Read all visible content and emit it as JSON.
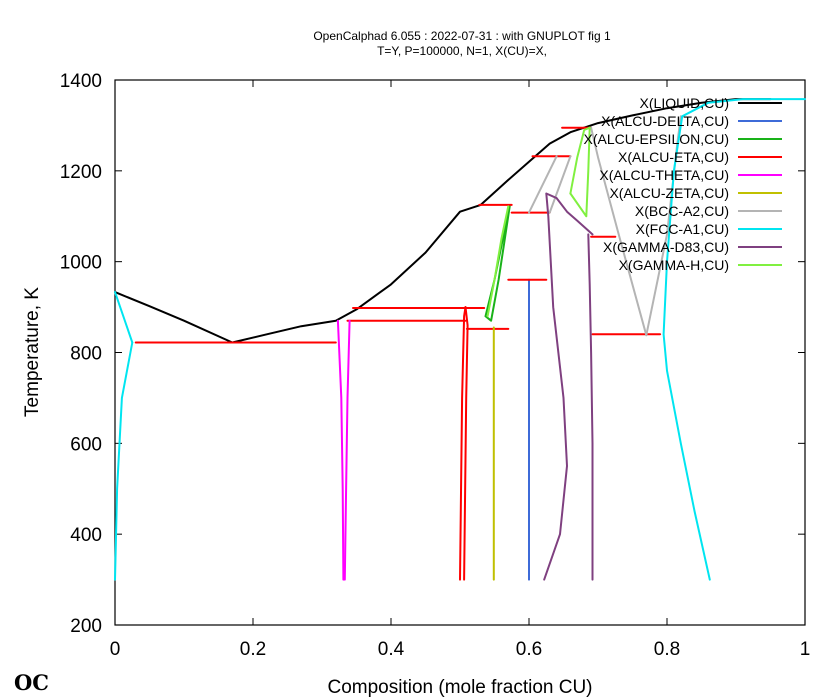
{
  "chart_data": {
    "type": "line",
    "title": "OpenCalphad    6.055 :   2022-07-31 : with GNUPLOT fig 1",
    "subtitle": "T=Y,  P=100000, N=1, X(CU)=X,",
    "xlabel": "Composition (mole fraction CU)",
    "ylabel": "Temperature, K",
    "xlim": [
      0,
      1
    ],
    "ylim": [
      200,
      1400
    ],
    "x_ticks": [
      0,
      0.2,
      0.4,
      0.6,
      0.8,
      1
    ],
    "x_tick_labels": [
      "0",
      "0.2",
      "0.4",
      "0.6",
      "0.8",
      "1"
    ],
    "y_ticks": [
      200,
      400,
      600,
      800,
      1000,
      1200,
      1400
    ],
    "y_tick_labels": [
      "200",
      "400",
      "600",
      "800",
      "1000",
      "1200",
      "1400"
    ],
    "legend_position": "top-right",
    "series": [
      {
        "name": "X(LIQUID,CU)",
        "color": "#000000",
        "segments": [
          [
            [
              0,
              933
            ],
            [
              0.05,
              902
            ],
            [
              0.1,
              870
            ],
            [
              0.17,
              822
            ],
            [
              0.22,
              840
            ],
            [
              0.27,
              858
            ],
            [
              0.32,
              870
            ],
            [
              0.35,
              895
            ],
            [
              0.4,
              950
            ],
            [
              0.45,
              1020
            ],
            [
              0.5,
              1110
            ],
            [
              0.53,
              1125
            ],
            [
              0.57,
              1180
            ],
            [
              0.6,
              1220
            ],
            [
              0.63,
              1260
            ],
            [
              0.66,
              1285
            ],
            [
              0.7,
              1305
            ],
            [
              0.75,
              1322
            ],
            [
              0.8,
              1338
            ],
            [
              0.85,
              1350
            ],
            [
              0.9,
              1358
            ],
            [
              0.95,
              1358
            ]
          ]
        ]
      },
      {
        "name": "X(ALCU-DELTA,CU)",
        "color": "#3e6bd8",
        "segments": [
          [
            [
              0.6,
              960
            ],
            [
              0.6,
              300
            ]
          ]
        ]
      },
      {
        "name": "X(ALCU-EPSILON,CU)",
        "color": "#19b219",
        "segments": [
          [
            [
              0.537,
              880
            ],
            [
              0.55,
              960
            ],
            [
              0.562,
              1050
            ],
            [
              0.572,
              1122
            ],
            [
              0.565,
              1050
            ],
            [
              0.556,
              960
            ],
            [
              0.545,
              870
            ],
            [
              0.537,
              880
            ]
          ]
        ]
      },
      {
        "name": "X(ALCU-ETA,CU)",
        "color": "#ff0000",
        "segments": [
          [
            [
              0.03,
              822
            ],
            [
              0.32,
              822
            ]
          ],
          [
            [
              0.337,
              870
            ],
            [
              0.508,
              870
            ]
          ],
          [
            [
              0.345,
              898
            ],
            [
              0.535,
              898
            ]
          ],
          [
            [
              0.51,
              852
            ],
            [
              0.57,
              852
            ]
          ],
          [
            [
              0.5,
              300
            ],
            [
              0.503,
              700
            ],
            [
              0.506,
              880
            ],
            [
              0.508,
              900
            ]
          ],
          [
            [
              0.506,
              300
            ],
            [
              0.509,
              700
            ],
            [
              0.511,
              860
            ],
            [
              0.508,
              900
            ]
          ],
          [
            [
              0.575,
              1108
            ],
            [
              0.63,
              1108
            ]
          ],
          [
            [
              0.528,
              1125
            ],
            [
              0.575,
              1125
            ]
          ],
          [
            [
              0.57,
              960
            ],
            [
              0.625,
              960
            ]
          ],
          [
            [
              0.605,
              1232
            ],
            [
              0.66,
              1232
            ]
          ],
          [
            [
              0.648,
              1295
            ],
            [
              0.69,
              1295
            ]
          ],
          [
            [
              0.69,
              1055
            ],
            [
              0.725,
              1055
            ]
          ],
          [
            [
              0.692,
              840
            ],
            [
              0.79,
              840
            ]
          ]
        ]
      },
      {
        "name": "X(ALCU-THETA,CU)",
        "color": "#ff00ff",
        "segments": [
          [
            [
              0.323,
              870
            ],
            [
              0.328,
              700
            ],
            [
              0.33,
              500
            ],
            [
              0.331,
              300
            ]
          ],
          [
            [
              0.333,
              300
            ],
            [
              0.335,
              500
            ],
            [
              0.337,
              700
            ],
            [
              0.34,
              870
            ]
          ]
        ]
      },
      {
        "name": "X(ALCU-ZETA,CU)",
        "color": "#c0c000",
        "segments": [
          [
            [
              0.549,
              855
            ],
            [
              0.549,
              300
            ]
          ]
        ]
      },
      {
        "name": "X(BCC-A2,CU)",
        "color": "#b4b4b4",
        "segments": [
          [
            [
              0.6,
              1108
            ],
            [
              0.64,
              1232
            ]
          ],
          [
            [
              0.63,
              1108
            ],
            [
              0.66,
              1232
            ]
          ],
          [
            [
              0.77,
              838
            ],
            [
              0.73,
              1060
            ],
            [
              0.7,
              1230
            ],
            [
              0.69,
              1295
            ]
          ],
          [
            [
              0.77,
              838
            ],
            [
              0.8,
              1060
            ],
            [
              0.815,
              1260
            ],
            [
              0.82,
              1320
            ]
          ]
        ]
      },
      {
        "name": "X(FCC-A1,CU)",
        "color": "#00e5f0",
        "segments": [
          [
            [
              0,
              933
            ],
            [
              0.012,
              880
            ],
            [
              0.025,
              822
            ]
          ],
          [
            [
              0.025,
              822
            ],
            [
              0.01,
              700
            ],
            [
              0.003,
              500
            ],
            [
              0,
              300
            ]
          ],
          [
            [
              0.862,
              300
            ],
            [
              0.84,
              450
            ],
            [
              0.82,
              600
            ],
            [
              0.8,
              760
            ],
            [
              0.795,
              840
            ],
            [
              0.8,
              1000
            ],
            [
              0.81,
              1200
            ],
            [
              0.822,
              1320
            ],
            [
              0.86,
              1350
            ],
            [
              0.91,
              1358
            ],
            [
              1,
              1358
            ]
          ]
        ]
      },
      {
        "name": "X(GAMMA-D83,CU)",
        "color": "#7f4080",
        "segments": [
          [
            [
              0.622,
              300
            ],
            [
              0.645,
              400
            ],
            [
              0.655,
              550
            ],
            [
              0.65,
              700
            ],
            [
              0.635,
              900
            ],
            [
              0.628,
              1100
            ],
            [
              0.625,
              1150
            ],
            [
              0.64,
              1140
            ],
            [
              0.655,
              1110
            ],
            [
              0.67,
              1090
            ],
            [
              0.692,
              1060
            ]
          ],
          [
            [
              0.686,
              1060
            ],
            [
              0.688,
              950
            ],
            [
              0.69,
              800
            ],
            [
              0.692,
              600
            ],
            [
              0.692,
              300
            ]
          ]
        ]
      },
      {
        "name": "X(GAMMA-H,CU)",
        "color": "#80f040",
        "segments": [
          [
            [
              0.57,
              1122
            ],
            [
              0.56,
              1050
            ],
            [
              0.55,
              960
            ],
            [
              0.54,
              880
            ]
          ],
          [
            [
              0.66,
              1150
            ],
            [
              0.67,
              1230
            ],
            [
              0.68,
              1290
            ],
            [
              0.688,
              1295
            ]
          ],
          [
            [
              0.688,
              1295
            ],
            [
              0.686,
              1200
            ],
            [
              0.683,
              1100
            ],
            [
              0.66,
              1150
            ]
          ]
        ]
      }
    ]
  },
  "logo_text": "OC"
}
